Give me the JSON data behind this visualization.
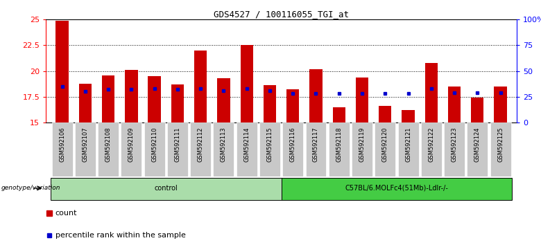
{
  "title": "GDS4527 / 100116055_TGI_at",
  "samples": [
    "GSM592106",
    "GSM592107",
    "GSM592108",
    "GSM592109",
    "GSM592110",
    "GSM592111",
    "GSM592112",
    "GSM592113",
    "GSM592114",
    "GSM592115",
    "GSM592116",
    "GSM592117",
    "GSM592118",
    "GSM592119",
    "GSM592120",
    "GSM592121",
    "GSM592122",
    "GSM592123",
    "GSM592124",
    "GSM592125"
  ],
  "count_values": [
    24.9,
    18.8,
    19.6,
    20.1,
    19.5,
    18.7,
    22.0,
    19.3,
    22.5,
    18.6,
    18.2,
    20.2,
    16.5,
    19.4,
    16.6,
    16.2,
    20.8,
    18.5,
    17.4,
    18.5
  ],
  "percentile_values": [
    18.5,
    18.0,
    18.2,
    18.2,
    18.3,
    18.2,
    18.3,
    18.1,
    18.3,
    18.1,
    17.8,
    17.8,
    17.8,
    17.8,
    17.8,
    17.8,
    18.3,
    17.9,
    17.9,
    17.9
  ],
  "ylim_left": [
    15,
    25
  ],
  "ylim_right": [
    0,
    100
  ],
  "yticks_left": [
    15,
    17.5,
    20,
    22.5,
    25
  ],
  "ytick_labels_left": [
    "15",
    "17.5",
    "20",
    "22.5",
    "25"
  ],
  "yticks_right": [
    0,
    25,
    50,
    75,
    100
  ],
  "ytick_labels_right": [
    "0",
    "25",
    "50",
    "75",
    "100%"
  ],
  "bar_color": "#cc0000",
  "percentile_color": "#0000cc",
  "bar_bottom": 15,
  "groups": [
    {
      "label": "control",
      "start": 0,
      "end": 9,
      "color": "#aaddaa"
    },
    {
      "label": "C57BL/6.MOLFc4(51Mb)-Ldlr-/-",
      "start": 10,
      "end": 19,
      "color": "#44cc44"
    }
  ],
  "group_label_prefix": "genotype/variation",
  "legend_count_label": "count",
  "legend_pct_label": "percentile rank within the sample",
  "xtick_bg": "#c8c8c8",
  "plot_bg": "white",
  "figure_bg": "white"
}
